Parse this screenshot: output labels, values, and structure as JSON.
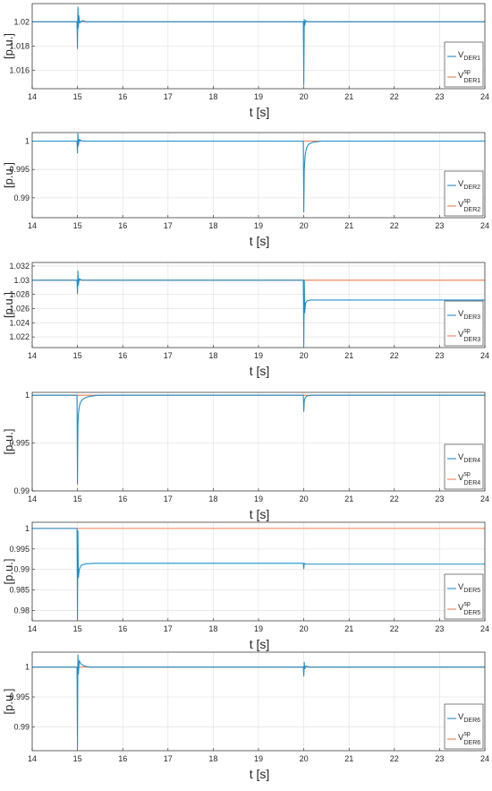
{
  "colors": {
    "measured": "#1f8fc8",
    "setpoint": "#f07f52",
    "grid": "#e6e6e6",
    "axis": "#262626"
  },
  "chart_data": [
    {
      "type": "line",
      "xlabel": "t [s]",
      "ylabel": "[p.u.]",
      "xlim": [
        14,
        24
      ],
      "ylim": [
        1.0145,
        1.0215
      ],
      "xticks": [
        "14",
        "15",
        "16",
        "17",
        "18",
        "19",
        "20",
        "21",
        "22",
        "23",
        "24"
      ],
      "yticks": [
        1.016,
        1.018,
        1.02
      ],
      "ytick_labels": [
        "1.016",
        "1.018",
        "1.02"
      ],
      "grid": true,
      "legend_position": "bottom-right",
      "series": [
        {
          "name": "V",
          "subscript": "DER1",
          "superscript": "",
          "role": "measured",
          "x": [
            14,
            14.99,
            15.0,
            15.01,
            15.02,
            15.03,
            15.05,
            15.1,
            15.2,
            19.99,
            20.0,
            20.01,
            20.02,
            20.04,
            20.08,
            20.15,
            24
          ],
          "y": [
            1.02,
            1.02,
            1.0178,
            1.0212,
            1.0195,
            1.0205,
            1.0199,
            1.0201,
            1.02,
            1.02,
            1.0148,
            1.0202,
            1.0197,
            1.0201,
            1.02,
            1.02,
            1.02
          ]
        },
        {
          "name": "V",
          "subscript": "DER1",
          "superscript": "sp",
          "role": "setpoint",
          "x": [
            14,
            24
          ],
          "y": [
            1.02,
            1.02
          ]
        }
      ]
    },
    {
      "type": "line",
      "xlabel": "t [s]",
      "ylabel": "[p.u.]",
      "xlim": [
        14,
        24
      ],
      "ylim": [
        0.9865,
        1.0015
      ],
      "xticks": [
        "14",
        "15",
        "16",
        "17",
        "18",
        "19",
        "20",
        "21",
        "22",
        "23",
        "24"
      ],
      "yticks": [
        0.99,
        0.995,
        1.0
      ],
      "ytick_labels": [
        "0.99",
        "0.995",
        "1"
      ],
      "grid": true,
      "legend_position": "bottom-right",
      "series": [
        {
          "name": "V",
          "subscript": "DER2",
          "superscript": "",
          "role": "measured",
          "x": [
            14,
            14.99,
            15.0,
            15.01,
            15.02,
            15.04,
            15.1,
            19.99,
            20.0,
            20.01,
            20.03,
            20.06,
            20.1,
            20.2,
            20.4,
            24
          ],
          "y": [
            1.0,
            1.0,
            0.9979,
            1.0013,
            0.9992,
            1.0003,
            1.0,
            1.0,
            0.9875,
            0.995,
            0.9975,
            0.9988,
            0.9994,
            0.9998,
            1.0,
            1.0
          ]
        },
        {
          "name": "V",
          "subscript": "DER2",
          "superscript": "sp",
          "role": "setpoint",
          "x": [
            14,
            24
          ],
          "y": [
            1.0,
            1.0
          ]
        }
      ]
    },
    {
      "type": "line",
      "xlabel": "t [s]",
      "ylabel": "[p.u.]",
      "xlim": [
        14,
        24
      ],
      "ylim": [
        1.0205,
        1.0325
      ],
      "xticks": [
        "14",
        "15",
        "16",
        "17",
        "18",
        "19",
        "20",
        "21",
        "22",
        "23",
        "24"
      ],
      "yticks": [
        1.022,
        1.024,
        1.026,
        1.028,
        1.03,
        1.032
      ],
      "ytick_labels": [
        "1.022",
        "1.024",
        "1.026",
        "1.028",
        "1.03",
        "1.032"
      ],
      "grid": true,
      "legend_position": "bottom-right",
      "series": [
        {
          "name": "V",
          "subscript": "DER3",
          "superscript": "",
          "role": "measured",
          "x": [
            14,
            14.99,
            15.0,
            15.01,
            15.02,
            15.04,
            15.1,
            19.99,
            20.0,
            20.01,
            20.02,
            20.04,
            20.08,
            20.15,
            20.3,
            24
          ],
          "y": [
            1.03,
            1.03,
            1.0281,
            1.0313,
            1.0293,
            1.0302,
            1.03,
            1.03,
            1.0207,
            1.03,
            1.0254,
            1.0268,
            1.0271,
            1.0272,
            1.0272,
            1.0272
          ]
        },
        {
          "name": "V",
          "subscript": "DER3",
          "superscript": "sp",
          "role": "setpoint",
          "x": [
            14,
            24
          ],
          "y": [
            1.03,
            1.03
          ]
        }
      ]
    },
    {
      "type": "line",
      "xlabel": "t [s]",
      "ylabel": "[p.u.]",
      "xlim": [
        14,
        24
      ],
      "ylim": [
        0.99,
        1.0003
      ],
      "xticks": [
        "14",
        "15",
        "16",
        "17",
        "18",
        "19",
        "20",
        "21",
        "22",
        "23",
        "24"
      ],
      "yticks": [
        0.99,
        0.995,
        1.0
      ],
      "ytick_labels": [
        "0.99",
        "0.995",
        "1"
      ],
      "grid": true,
      "legend_position": "bottom-right",
      "series": [
        {
          "name": "V",
          "subscript": "DER4",
          "superscript": "",
          "role": "measured",
          "x": [
            14,
            14.99,
            15.0,
            15.01,
            15.02,
            15.04,
            15.07,
            15.12,
            15.2,
            15.3,
            15.45,
            15.6,
            19.99,
            20.0,
            20.01,
            20.03,
            20.06,
            20.15,
            24
          ],
          "y": [
            1.0,
            1.0,
            0.9907,
            0.9968,
            0.998,
            0.9988,
            0.9993,
            0.9996,
            0.9998,
            0.9999,
            1.0,
            1.0,
            1.0,
            0.9983,
            0.9994,
            0.9997,
            0.9999,
            1.0,
            1.0
          ]
        },
        {
          "name": "V",
          "subscript": "DER4",
          "superscript": "sp",
          "role": "setpoint",
          "x": [
            14,
            24
          ],
          "y": [
            1.0,
            1.0
          ]
        }
      ]
    },
    {
      "type": "line",
      "xlabel": "t [s]",
      "ylabel": "[p.u.]",
      "xlim": [
        14,
        24
      ],
      "ylim": [
        0.9775,
        1.0015
      ],
      "xticks": [
        "14",
        "15",
        "16",
        "17",
        "18",
        "19",
        "20",
        "21",
        "22",
        "23",
        "24"
      ],
      "yticks": [
        0.98,
        0.985,
        0.99,
        0.995,
        1.0
      ],
      "ytick_labels": [
        "0.98",
        "0.985",
        "0.99",
        "0.995",
        "1"
      ],
      "grid": true,
      "legend_position": "bottom-right",
      "series": [
        {
          "name": "V",
          "subscript": "DER5",
          "superscript": "",
          "role": "measured",
          "x": [
            14,
            14.99,
            15.0,
            15.01,
            15.02,
            15.04,
            15.07,
            15.12,
            15.2,
            15.4,
            19.99,
            20.0,
            20.01,
            20.04,
            20.1,
            24
          ],
          "y": [
            1.0,
            1.0,
            0.9778,
            0.9994,
            0.988,
            0.99,
            0.9908,
            0.9912,
            0.9914,
            0.9915,
            0.9915,
            0.9902,
            0.9915,
            0.9913,
            0.9913,
            0.9913
          ]
        },
        {
          "name": "V",
          "subscript": "DER5",
          "superscript": "sp",
          "role": "setpoint",
          "x": [
            14,
            24
          ],
          "y": [
            1.0,
            1.0
          ]
        }
      ]
    },
    {
      "type": "line",
      "xlabel": "t [s]",
      "ylabel": "[p.u.]",
      "xlim": [
        14,
        24
      ],
      "ylim": [
        0.986,
        1.0025
      ],
      "xticks": [
        "14",
        "15",
        "16",
        "17",
        "18",
        "19",
        "20",
        "21",
        "22",
        "23",
        "24"
      ],
      "yticks": [
        0.99,
        0.995,
        1.0
      ],
      "ytick_labels": [
        "0.99",
        "0.995",
        "1"
      ],
      "grid": true,
      "legend_position": "bottom-right",
      "series": [
        {
          "name": "V",
          "subscript": "DER6",
          "superscript": "",
          "role": "measured",
          "x": [
            14,
            14.99,
            15.0,
            15.01,
            15.02,
            15.04,
            15.07,
            15.12,
            15.2,
            15.3,
            19.99,
            20.0,
            20.01,
            20.02,
            20.05,
            20.1,
            24
          ],
          "y": [
            1.0,
            1.0,
            0.9865,
            1.002,
            0.9988,
            1.0011,
            1.0006,
            1.0003,
            1.0001,
            1.0,
            1.0,
            0.9985,
            1.0008,
            0.9997,
            1.0002,
            1.0,
            1.0
          ]
        },
        {
          "name": "V",
          "subscript": "DER6",
          "superscript": "sp",
          "role": "setpoint",
          "x": [
            14,
            24
          ],
          "y": [
            1.0,
            1.0
          ]
        }
      ]
    }
  ]
}
